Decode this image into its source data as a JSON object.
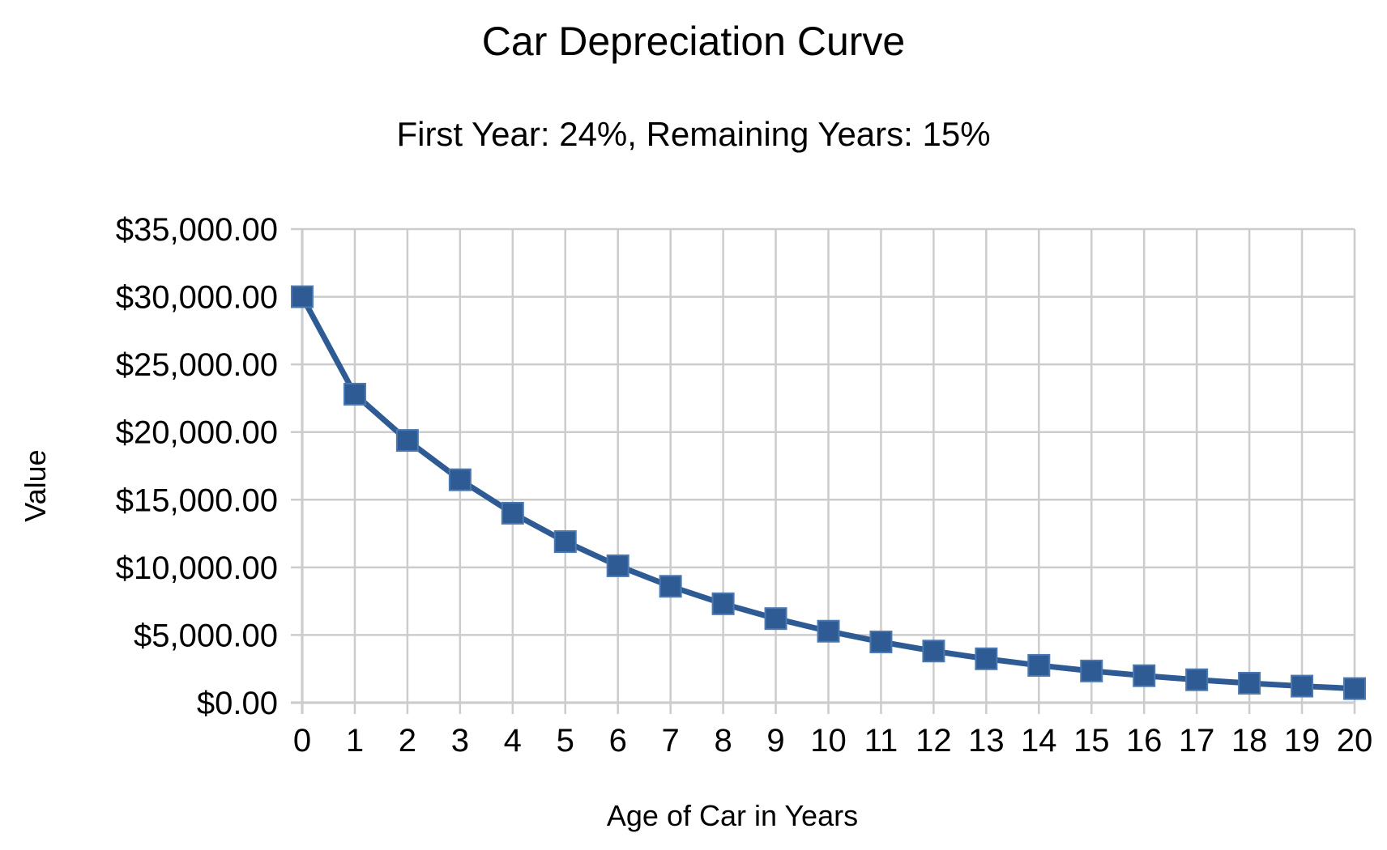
{
  "chart_data": {
    "type": "line",
    "title": "Car Depreciation Curve",
    "subtitle": "First Year: 24%, Remaining Years: 15%",
    "xlabel": "Age of Car in Years",
    "ylabel": "Value",
    "x": [
      0,
      1,
      2,
      3,
      4,
      5,
      6,
      7,
      8,
      9,
      10,
      11,
      12,
      13,
      14,
      15,
      16,
      17,
      18,
      19,
      20
    ],
    "x_tick_labels": [
      "0",
      "1",
      "2",
      "3",
      "4",
      "5",
      "6",
      "7",
      "8",
      "9",
      "10",
      "11",
      "12",
      "13",
      "14",
      "15",
      "16",
      "17",
      "18",
      "19",
      "20"
    ],
    "ylim": [
      0,
      35000
    ],
    "y_ticks": [
      0,
      5000,
      10000,
      15000,
      20000,
      25000,
      30000,
      35000
    ],
    "y_tick_labels": [
      "$0.00",
      "$5,000.00",
      "$10,000.00",
      "$15,000.00",
      "$20,000.00",
      "$25,000.00",
      "$30,000.00",
      "$35,000.00"
    ],
    "grid": true,
    "legend": "none",
    "series": [
      {
        "color": "#2e5b94",
        "marker": "square",
        "values": [
          30000,
          22800,
          19380,
          16473,
          14002,
          11902,
          10116,
          8599,
          7309,
          6213,
          5281,
          4489,
          3815,
          3243,
          2757,
          2343,
          1992,
          1693,
          1439,
          1223,
          1040
        ]
      }
    ]
  }
}
